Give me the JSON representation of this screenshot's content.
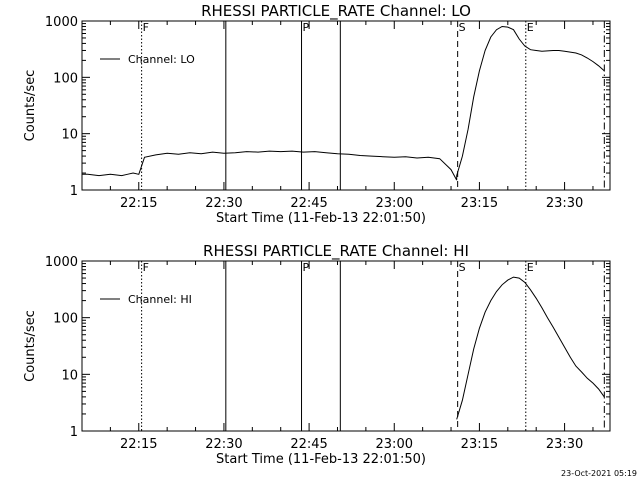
{
  "chart_data": [
    {
      "type": "line",
      "title": "RHESSI PARTICLE_RATE Channel: LO",
      "xlabel": "Start Time (11-Feb-13 22:01:50)",
      "ylabel": "Counts/sec",
      "yscale": "log",
      "xlim": [
        "22:05",
        "23:38"
      ],
      "ylim": [
        1,
        1000
      ],
      "x_ticks": [
        "22:15",
        "22:30",
        "22:45",
        "23:00",
        "23:15",
        "23:30"
      ],
      "y_ticks": [
        "1",
        "10",
        "100",
        "1000"
      ],
      "grid": false,
      "legend": {
        "position": "top-left",
        "entries": [
          "Channel: LO"
        ]
      },
      "series": [
        {
          "name": "Channel: LO",
          "x": [
            "22:05",
            "22:06",
            "22:08",
            "22:10",
            "22:12",
            "22:13",
            "22:14",
            "22:15",
            "22:16",
            "22:18",
            "22:20",
            "22:22",
            "22:24",
            "22:26",
            "22:28",
            "22:30",
            "22:32",
            "22:34",
            "22:36",
            "22:38",
            "22:40",
            "22:42",
            "22:44",
            "22:46",
            "22:48",
            "22:50",
            "22:52",
            "22:54",
            "22:56",
            "22:58",
            "23:00",
            "23:02",
            "23:04",
            "23:06",
            "23:08",
            "23:10",
            "23:11",
            "23:11",
            "23:12",
            "23:13",
            "23:14",
            "23:15",
            "23:16",
            "23:17",
            "23:18",
            "23:19",
            "23:20",
            "23:21",
            "23:22",
            "23:23",
            "23:24",
            "23:25",
            "23:26",
            "23:27",
            "23:28",
            "23:29",
            "23:30",
            "23:31",
            "23:32",
            "23:33",
            "23:34",
            "23:35",
            "23:36",
            "23:37"
          ],
          "values": [
            1.9,
            1.9,
            1.8,
            1.9,
            1.8,
            1.9,
            2.0,
            1.9,
            3.8,
            4.2,
            4.5,
            4.3,
            4.6,
            4.4,
            4.7,
            4.5,
            4.6,
            4.8,
            4.7,
            4.9,
            4.8,
            4.9,
            4.7,
            4.8,
            4.6,
            4.4,
            4.3,
            4.1,
            4.0,
            3.9,
            3.8,
            3.9,
            3.7,
            3.8,
            3.6,
            2.3,
            1.5,
            1.8,
            4,
            12,
            45,
            130,
            300,
            520,
            700,
            800,
            780,
            700,
            480,
            360,
            310,
            300,
            290,
            295,
            300,
            300,
            290,
            280,
            270,
            250,
            220,
            190,
            160,
            130
          ]
        }
      ],
      "markers": [
        {
          "x": "22:15:30",
          "style": "dotted",
          "label": "F"
        },
        {
          "x": "22:30:20",
          "style": "solid",
          "label": ""
        },
        {
          "x": "22:43:40",
          "style": "solid",
          "label": "P"
        },
        {
          "x": "22:50:30",
          "style": "solid",
          "label": ""
        },
        {
          "x": "23:11:10",
          "style": "dashed",
          "label": "S"
        },
        {
          "x": "23:23:10",
          "style": "dotted",
          "label": "E"
        },
        {
          "x": "23:37:00",
          "style": "dashdot",
          "label": ""
        }
      ]
    },
    {
      "type": "line",
      "title": "RHESSI PARTICLE_RATE Channel: HI",
      "xlabel": "Start Time (11-Feb-13 22:01:50)",
      "ylabel": "Counts/sec",
      "yscale": "log",
      "xlim": [
        "22:05",
        "23:38"
      ],
      "ylim": [
        1,
        1000
      ],
      "x_ticks": [
        "22:15",
        "22:30",
        "22:45",
        "23:00",
        "23:15",
        "23:30"
      ],
      "y_ticks": [
        "1",
        "10",
        "100",
        "1000"
      ],
      "grid": false,
      "legend": {
        "position": "top-left",
        "entries": [
          "Channel: HI"
        ]
      },
      "series": [
        {
          "name": "Channel: HI",
          "x": [
            "23:11",
            "23:12",
            "23:13",
            "23:14",
            "23:15",
            "23:16",
            "23:17",
            "23:18",
            "23:19",
            "23:20",
            "23:21",
            "23:22",
            "23:23",
            "23:24",
            "23:25",
            "23:26",
            "23:27",
            "23:28",
            "23:29",
            "23:30",
            "23:31",
            "23:32",
            "23:33",
            "23:34",
            "23:35",
            "23:36",
            "23:37"
          ],
          "values": [
            1.6,
            3.5,
            10,
            28,
            65,
            125,
            200,
            290,
            380,
            460,
            520,
            500,
            420,
            310,
            220,
            150,
            100,
            68,
            45,
            30,
            20,
            14,
            11,
            8.5,
            7,
            5.5,
            4
          ]
        }
      ],
      "markers": [
        {
          "x": "22:15:30",
          "style": "dotted",
          "label": "F"
        },
        {
          "x": "22:30:20",
          "style": "solid",
          "label": ""
        },
        {
          "x": "22:43:40",
          "style": "solid",
          "label": "P"
        },
        {
          "x": "22:50:30",
          "style": "solid",
          "label": ""
        },
        {
          "x": "23:11:10",
          "style": "dashed",
          "label": "S"
        },
        {
          "x": "23:23:10",
          "style": "dotted",
          "label": "E"
        },
        {
          "x": "23:37:00",
          "style": "dashdot",
          "label": ""
        }
      ]
    }
  ],
  "footer": {
    "timestamp": "23-Oct-2021 05:19"
  }
}
